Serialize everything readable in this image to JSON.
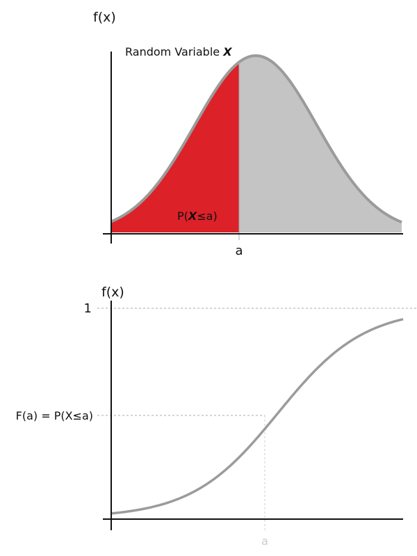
{
  "colors": {
    "shaded": "#dc2128",
    "unshaded": "#c4c4c4",
    "curve": "#9b9b9b",
    "axis": "#111111",
    "guide": "#aaaaaa",
    "faint": "#cccccc"
  },
  "pdf": {
    "y_axis_label": "f(x)",
    "curve_label_text": "Random Variable ",
    "curve_label_var": "X",
    "area_label_pre": "P(",
    "area_label_var": "X",
    "area_label_post": "≤a)",
    "x_marker_label": "a"
  },
  "cdf": {
    "y_axis_label": "f(x)",
    "top_tick_label": "1",
    "value_label": "F(a) = P(X≤a)",
    "x_marker_label": "a"
  }
}
